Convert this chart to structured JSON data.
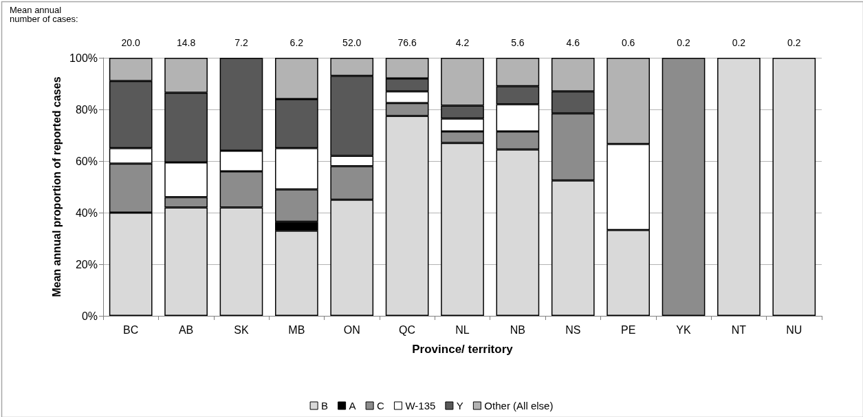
{
  "chart_data": {
    "type": "bar",
    "stacked": true,
    "xlabel": "Province/ territory",
    "ylabel": "Mean annual proportion of reported cases",
    "categories": [
      "BC",
      "AB",
      "SK",
      "MB",
      "ON",
      "QC",
      "NL",
      "NB",
      "NS",
      "PE",
      "YK",
      "NT",
      "NU"
    ],
    "series": [
      {
        "name": "B",
        "color": "#d9d9d9",
        "values": [
          40,
          42,
          42,
          33,
          45,
          77.5,
          67,
          64.5,
          52.5,
          33.3,
          0,
          100,
          100
        ]
      },
      {
        "name": "A",
        "color": "#000000",
        "values": [
          0,
          0,
          0,
          3.5,
          0,
          0,
          0,
          0,
          0,
          0,
          0,
          0,
          0
        ]
      },
      {
        "name": "C",
        "color": "#8c8c8c",
        "values": [
          19,
          4,
          14,
          12.5,
          13,
          5,
          4.5,
          7,
          26,
          0,
          100,
          0,
          0
        ]
      },
      {
        "name": "W-135",
        "color": "#ffffff",
        "values": [
          6,
          13.5,
          8,
          16,
          4,
          4.5,
          5,
          10.5,
          0,
          33.3,
          0,
          0,
          0
        ]
      },
      {
        "name": "Y",
        "color": "#595959",
        "values": [
          26,
          27,
          36,
          19,
          31,
          5,
          5,
          7,
          8.5,
          0,
          0,
          0,
          0
        ]
      },
      {
        "name": "Other (All else)",
        "color": "#b3b3b3",
        "values": [
          9,
          13.5,
          0,
          16,
          7,
          8,
          18.5,
          11,
          13,
          33.4,
          0,
          0,
          0
        ]
      }
    ],
    "ylim": [
      0,
      100
    ],
    "yticks": [
      {
        "value": 0,
        "label": "0%"
      },
      {
        "value": 20,
        "label": "20%"
      },
      {
        "value": 40,
        "label": "40%"
      },
      {
        "value": 60,
        "label": "60%"
      },
      {
        "value": 80,
        "label": "80%"
      },
      {
        "value": 100,
        "label": "100%"
      }
    ],
    "grid": "y",
    "legend": "bottom",
    "annotations": [
      "Mean annual\nnumber of cases:",
      "20.0",
      "14.8",
      "7.2",
      "6.2",
      "52.0",
      "76.6",
      "4.2",
      "5.6",
      "4.6",
      "0.6",
      "0.2",
      "0.2",
      "0.2"
    ]
  }
}
